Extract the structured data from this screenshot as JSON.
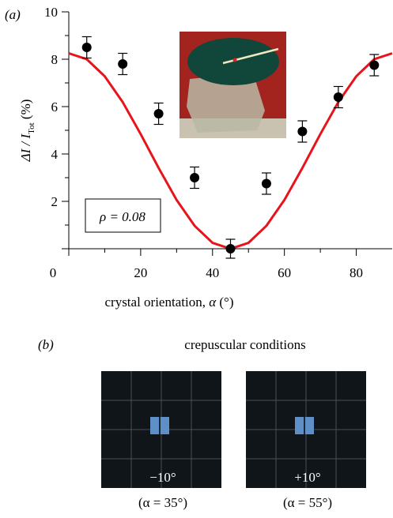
{
  "panel_a_label": "(a)",
  "chart_data": {
    "type": "scatter",
    "x": [
      5,
      15,
      25,
      35,
      45,
      55,
      65,
      75,
      85
    ],
    "values": [
      8.5,
      7.8,
      5.7,
      3.0,
      0.0,
      2.75,
      4.95,
      6.4,
      7.75
    ],
    "errors": [
      0.45,
      0.45,
      0.45,
      0.45,
      0.4,
      0.45,
      0.45,
      0.45,
      0.45
    ],
    "color": "#000000",
    "fit": {
      "color": "#e8141b",
      "x": [
        0,
        5,
        10,
        15,
        20,
        25,
        30,
        35,
        40,
        45,
        50,
        55,
        60,
        65,
        70,
        75,
        80,
        85,
        90
      ],
      "values": [
        8.25,
        8.0,
        7.28,
        6.19,
        4.84,
        3.41,
        2.06,
        0.97,
        0.25,
        0,
        0.25,
        0.97,
        2.06,
        3.41,
        4.84,
        6.19,
        7.28,
        8.0,
        8.25
      ]
    },
    "xlim": [
      0,
      90
    ],
    "ylim": [
      0,
      10
    ],
    "xticks": [
      0,
      20,
      40,
      60,
      80
    ],
    "yticks": [
      0,
      2,
      4,
      6,
      8,
      10
    ],
    "x_label": {
      "main": "crystal orientation, ",
      "symbol": "α",
      "unit": " (°)"
    },
    "y_label": {
      "main": "ΔI / I",
      "sub": "Tot",
      "unit": " (%)"
    },
    "annotation": "ρ = 0.08"
  },
  "panel_b": {
    "label": "(b)",
    "title": "crepuscular conditions",
    "images": [
      {
        "angle": "−10°",
        "caption": "(α = 35°)"
      },
      {
        "angle": "+10°",
        "caption": "(α = 55°)"
      }
    ]
  }
}
